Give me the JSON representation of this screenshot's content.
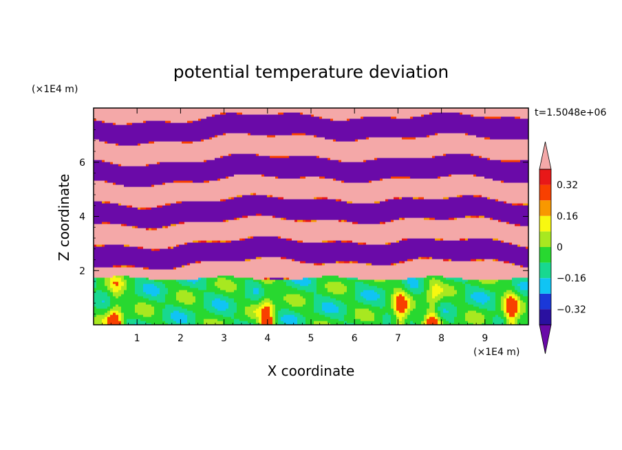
{
  "chart_data": {
    "type": "heatmap",
    "title": "potential temperature deviation",
    "xlabel": "X coordinate",
    "ylabel": "Z coordinate",
    "x_unit": "(×1E4 m)",
    "y_unit": "(×1E4 m)",
    "time_label": "t=1.5048e+06",
    "xlim": [
      0,
      10
    ],
    "ylim": [
      0,
      8
    ],
    "x_ticks": [
      "1",
      "2",
      "3",
      "4",
      "5",
      "6",
      "7",
      "8",
      "9"
    ],
    "y_ticks": [
      "2",
      "4",
      "6"
    ],
    "colorbar": {
      "tick_labels": [
        "0.32",
        "0.16",
        "0",
        "−0.16",
        "−0.32"
      ],
      "tick_values": [
        0.32,
        0.16,
        0,
        -0.16,
        -0.32
      ],
      "levels": [
        -0.4,
        -0.32,
        -0.24,
        -0.16,
        -0.08,
        0,
        0.08,
        0.16,
        0.24,
        0.32,
        0.4
      ],
      "colors": [
        "#6a0aa8",
        "#2a10a0",
        "#1a38d8",
        "#10c4f4",
        "#18d890",
        "#28d830",
        "#a8e820",
        "#f8f810",
        "#f89800",
        "#f84000",
        "#e81818",
        "#f4a8a8"
      ]
    },
    "regions": [
      {
        "description": "upper layers",
        "z_range": [
          1.7,
          8
        ],
        "pattern": "alternating layers of strongly negative (purple) and strongly positive (pink) deviation"
      },
      {
        "description": "boundary layer",
        "z_range": [
          0,
          1.7
        ],
        "pattern": "near-neutral deviation (green/cyan) with warm plumes near x=0.5, 4.0, 7.0, 7.8"
      }
    ]
  }
}
